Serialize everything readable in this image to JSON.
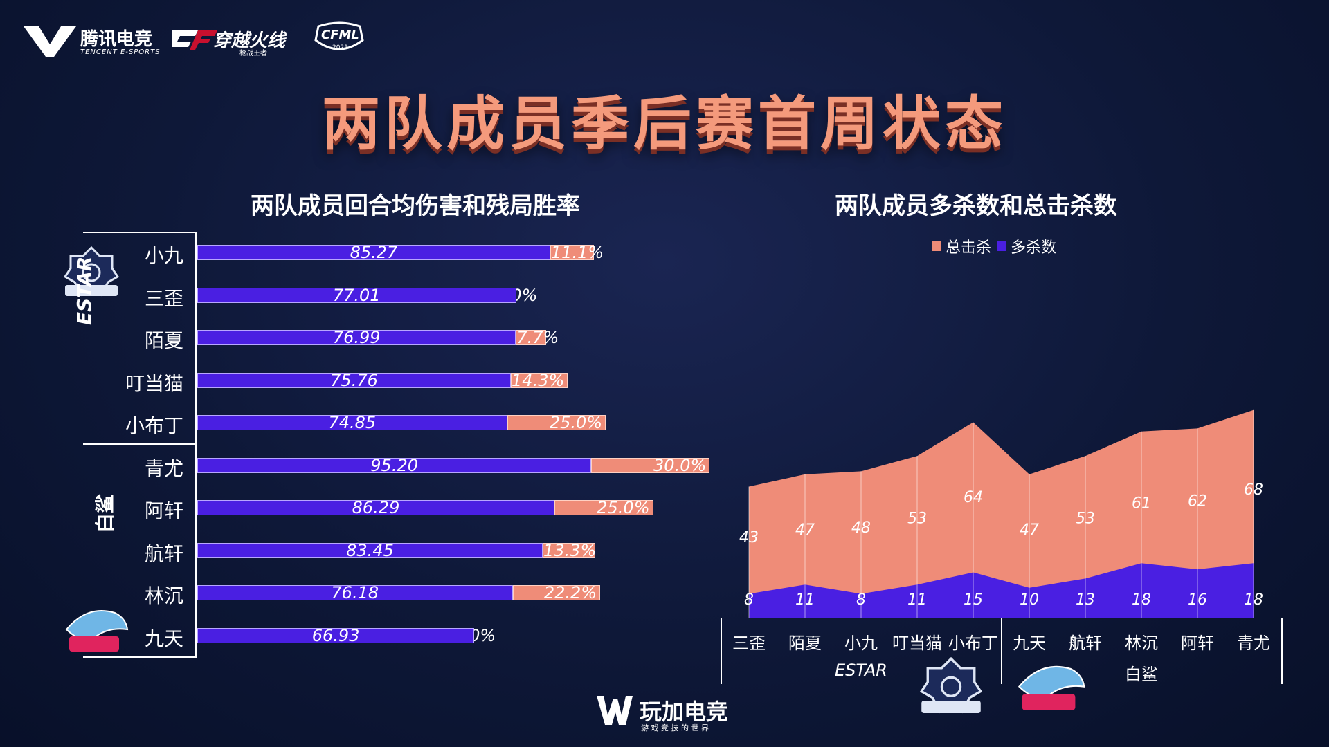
{
  "header": {
    "brand_cn": "腾讯电竞",
    "brand_en": "TENCENT E-SPORTS",
    "game_logo": "穿越火线",
    "game_logo_sub": "枪战王者",
    "league_logo": "CFML",
    "league_year": "2021"
  },
  "title": "两队成员季后赛首周状态",
  "colors": {
    "damage": "#4a1fe2",
    "winrate": "#ef8c78",
    "total_kills": "#ef8c78",
    "multi_kills": "#4a1fe2"
  },
  "footer": {
    "brand": "玩加电竞",
    "slogan": "游 戏 竞 技 的 世 界"
  },
  "chart_data": [
    {
      "type": "bar",
      "title": "两队成员回合均伤害和残局胜率",
      "groups": [
        {
          "team": "ESTAR",
          "players": [
            "小九",
            "三歪",
            "陌夏",
            "叮当猫",
            "小布丁"
          ]
        },
        {
          "team": "白鲨",
          "players": [
            "青尤",
            "阿轩",
            "航轩",
            "林沉",
            "九天"
          ]
        }
      ],
      "categories": [
        "小九",
        "三歪",
        "陌夏",
        "叮当猫",
        "小布丁",
        "青尤",
        "阿轩",
        "航轩",
        "林沉",
        "九天"
      ],
      "series": [
        {
          "name": "回合均伤害",
          "values": [
            85.27,
            77.01,
            76.99,
            75.76,
            74.85,
            95.2,
            86.29,
            83.45,
            76.18,
            66.93
          ],
          "labels": [
            "85.27",
            "77.01",
            "76.99",
            "75.76",
            "74.85",
            "95.20",
            "86.29",
            "83.45",
            "76.18",
            "66.93"
          ]
        },
        {
          "name": "残局胜率",
          "values": [
            11.1,
            0.0,
            7.7,
            14.3,
            25.0,
            30.0,
            25.0,
            13.3,
            22.2,
            0.0
          ],
          "labels": [
            "11.1%",
            "0.0%",
            "7.7%",
            "14.3%",
            "25.0%",
            "30.0%",
            "25.0%",
            "13.3%",
            "22.2%",
            "0.0%"
          ]
        }
      ]
    },
    {
      "type": "area",
      "title": "两队成员多杀数和总击杀数",
      "legend": [
        "总击杀",
        "多杀数"
      ],
      "legend_position": "top",
      "categories": [
        "三歪",
        "陌夏",
        "小九",
        "叮当猫",
        "小布丁",
        "九天",
        "航轩",
        "林沉",
        "阿轩",
        "青尤"
      ],
      "groups": [
        {
          "team": "ESTAR",
          "count": 5
        },
        {
          "team": "白鲨",
          "count": 5
        }
      ],
      "series": [
        {
          "name": "总击杀",
          "values": [
            43,
            47,
            48,
            53,
            64,
            47,
            53,
            61,
            62,
            68
          ]
        },
        {
          "name": "多杀数",
          "values": [
            8,
            11,
            8,
            11,
            15,
            10,
            13,
            18,
            16,
            18
          ]
        }
      ]
    }
  ]
}
